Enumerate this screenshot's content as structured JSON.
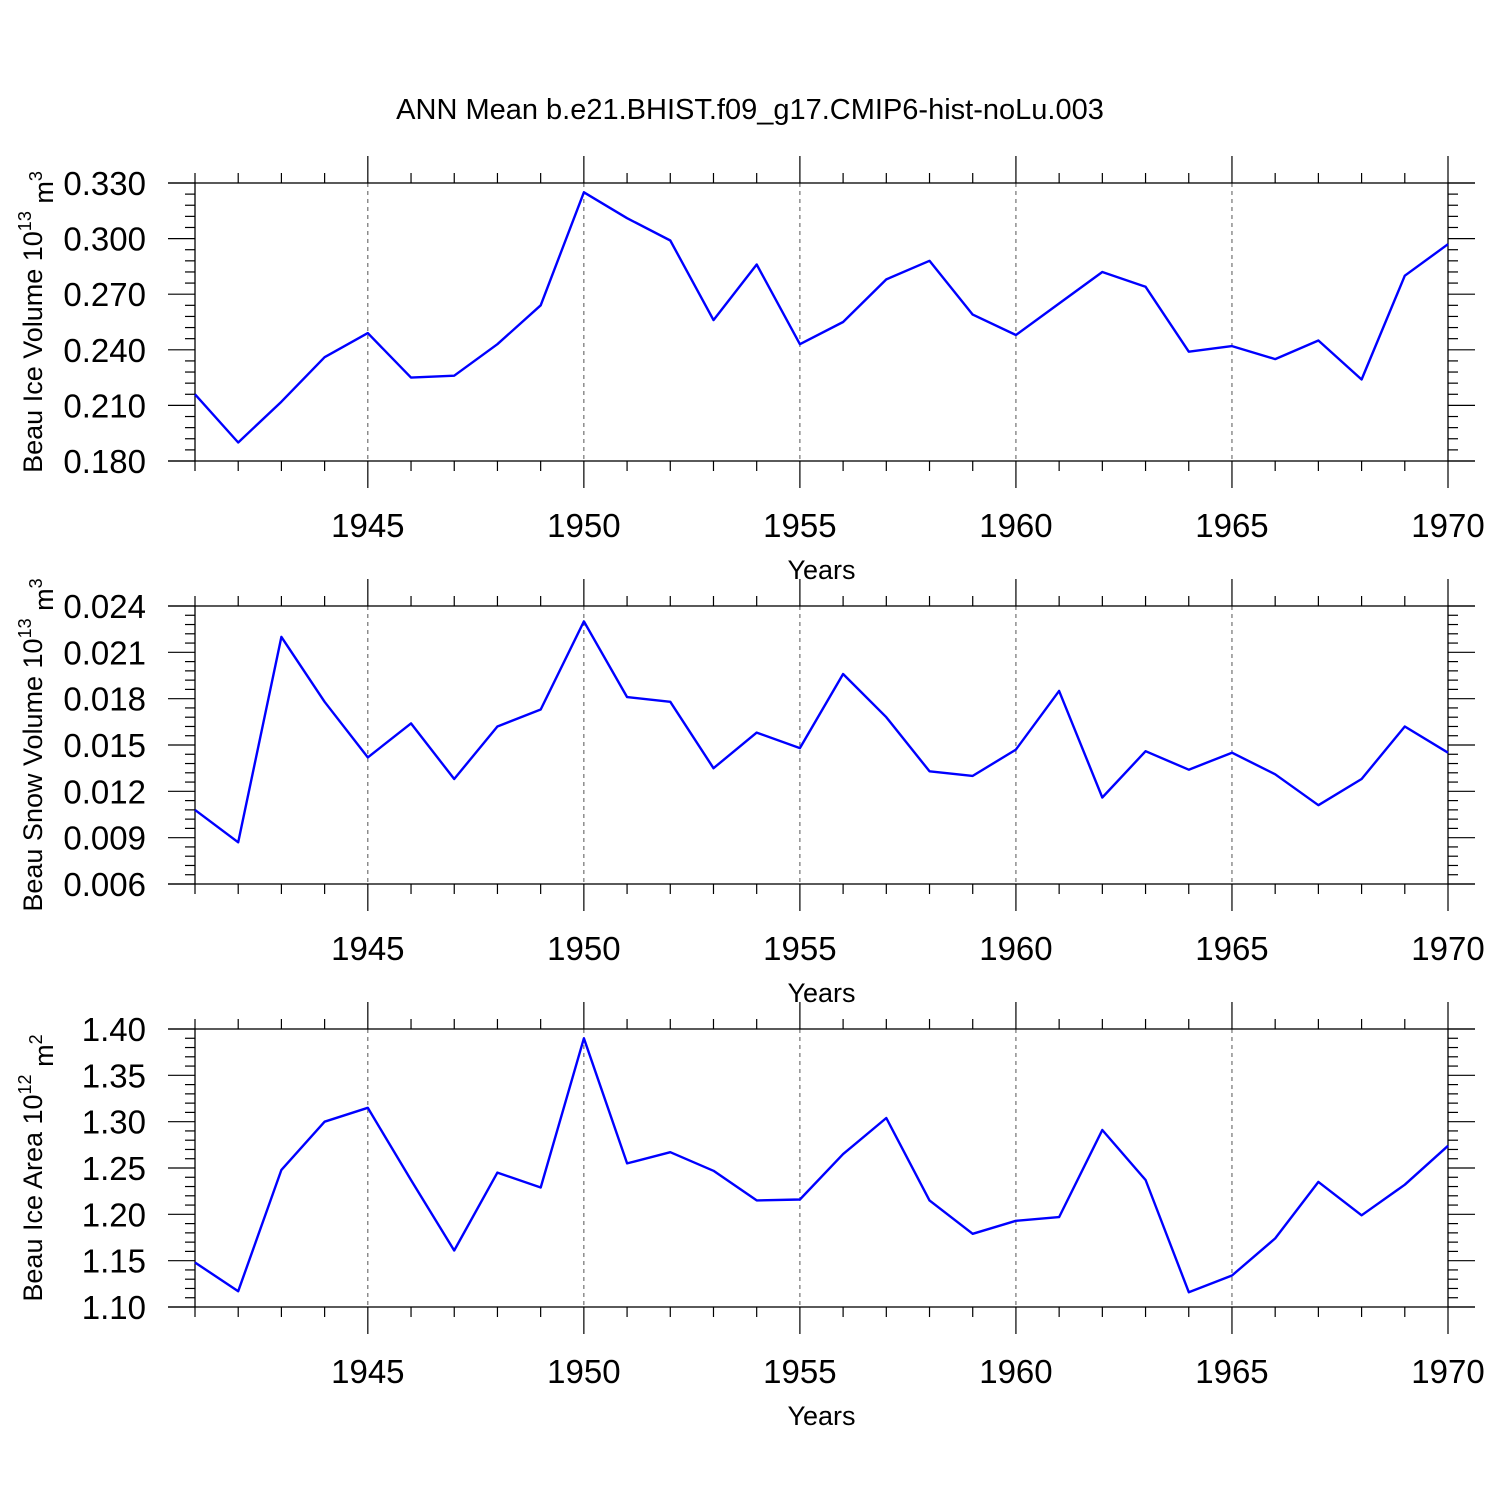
{
  "title": "ANN Mean b.e21.BHIST.f09_g17.CMIP6-hist-noLu.003",
  "chart_data": [
    {
      "type": "line",
      "ylabel": "Beau Ice Volume 10",
      "ylabel_exp": "13",
      "ylabel_unit": " m",
      "ylabel_unit_exp": "3",
      "xlabel": "Years",
      "xlim": [
        1941,
        1970
      ],
      "ylim": [
        0.18,
        0.33
      ],
      "yticks": [
        0.18,
        0.21,
        0.24,
        0.27,
        0.3,
        0.33
      ],
      "ytick_labels": [
        "0.180",
        "0.210",
        "0.240",
        "0.270",
        "0.300",
        "0.330"
      ],
      "xticks": [
        1945,
        1950,
        1955,
        1960,
        1965,
        1970
      ],
      "xtick_labels": [
        "1945",
        "1950",
        "1955",
        "1960",
        "1965",
        "1970"
      ],
      "grid": "vertical dashed at major x ticks",
      "color": "#0000ff",
      "x": [
        1941,
        1942,
        1943,
        1944,
        1945,
        1946,
        1947,
        1948,
        1949,
        1950,
        1951,
        1952,
        1953,
        1954,
        1955,
        1956,
        1957,
        1958,
        1959,
        1960,
        1961,
        1962,
        1963,
        1964,
        1965,
        1966,
        1967,
        1968,
        1969,
        1970
      ],
      "values": [
        0.216,
        0.19,
        0.212,
        0.236,
        0.249,
        0.225,
        0.226,
        0.243,
        0.264,
        0.325,
        0.311,
        0.299,
        0.256,
        0.286,
        0.243,
        0.255,
        0.278,
        0.288,
        0.259,
        0.248,
        0.265,
        0.282,
        0.274,
        0.239,
        0.242,
        0.235,
        0.245,
        0.224,
        0.28,
        0.297
      ]
    },
    {
      "type": "line",
      "ylabel": "Beau Snow Volume 10",
      "ylabel_exp": "13",
      "ylabel_unit": " m",
      "ylabel_unit_exp": "3",
      "xlabel": "Years",
      "xlim": [
        1941,
        1970
      ],
      "ylim": [
        0.006,
        0.024
      ],
      "yticks": [
        0.006,
        0.009,
        0.012,
        0.015,
        0.018,
        0.021,
        0.024
      ],
      "ytick_labels": [
        "0.006",
        "0.009",
        "0.012",
        "0.015",
        "0.018",
        "0.021",
        "0.024"
      ],
      "xticks": [
        1945,
        1950,
        1955,
        1960,
        1965,
        1970
      ],
      "xtick_labels": [
        "1945",
        "1950",
        "1955",
        "1960",
        "1965",
        "1970"
      ],
      "grid": "vertical dashed at major x ticks",
      "color": "#0000ff",
      "x": [
        1941,
        1942,
        1943,
        1944,
        1945,
        1946,
        1947,
        1948,
        1949,
        1950,
        1951,
        1952,
        1953,
        1954,
        1955,
        1956,
        1957,
        1958,
        1959,
        1960,
        1961,
        1962,
        1963,
        1964,
        1965,
        1966,
        1967,
        1968,
        1969,
        1970
      ],
      "values": [
        0.0108,
        0.0087,
        0.022,
        0.0178,
        0.0142,
        0.0164,
        0.0128,
        0.0162,
        0.0173,
        0.023,
        0.0181,
        0.0178,
        0.0135,
        0.0158,
        0.0148,
        0.0196,
        0.0168,
        0.0133,
        0.013,
        0.0147,
        0.0185,
        0.0116,
        0.0146,
        0.0134,
        0.0145,
        0.0131,
        0.0111,
        0.0128,
        0.0162,
        0.0145
      ]
    },
    {
      "type": "line",
      "ylabel": "Beau Ice Area 10",
      "ylabel_exp": "12",
      "ylabel_unit": " m",
      "ylabel_unit_exp": "2",
      "xlabel": "Years",
      "xlim": [
        1941,
        1970
      ],
      "ylim": [
        1.1,
        1.4
      ],
      "yticks": [
        1.1,
        1.15,
        1.2,
        1.25,
        1.3,
        1.35,
        1.4
      ],
      "ytick_labels": [
        "1.10",
        "1.15",
        "1.20",
        "1.25",
        "1.30",
        "1.35",
        "1.40"
      ],
      "xticks": [
        1945,
        1950,
        1955,
        1960,
        1965,
        1970
      ],
      "xtick_labels": [
        "1945",
        "1950",
        "1955",
        "1960",
        "1965",
        "1970"
      ],
      "grid": "vertical dashed at major x ticks",
      "color": "#0000ff",
      "x": [
        1941,
        1942,
        1943,
        1944,
        1945,
        1946,
        1947,
        1948,
        1949,
        1950,
        1951,
        1952,
        1953,
        1954,
        1955,
        1956,
        1957,
        1958,
        1959,
        1960,
        1961,
        1962,
        1963,
        1964,
        1965,
        1966,
        1967,
        1968,
        1969,
        1970
      ],
      "values": [
        1.148,
        1.117,
        1.248,
        1.3,
        1.315,
        1.237,
        1.161,
        1.245,
        1.229,
        1.39,
        1.255,
        1.267,
        1.247,
        1.215,
        1.216,
        1.265,
        1.304,
        1.215,
        1.179,
        1.193,
        1.197,
        1.291,
        1.237,
        1.116,
        1.134,
        1.174,
        1.235,
        1.199,
        1.232,
        1.274
      ]
    }
  ]
}
